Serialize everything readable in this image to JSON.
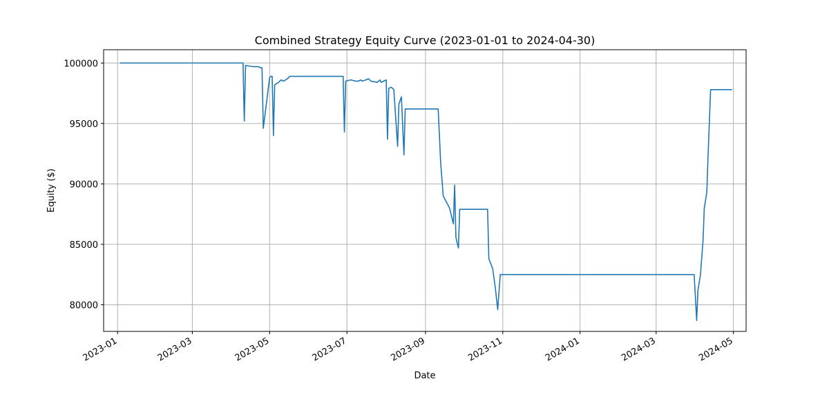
{
  "chart_data": {
    "type": "line",
    "title": "Combined Strategy Equity Curve (2023-01-01 to 2024-04-30)",
    "xlabel": "Date",
    "ylabel": "Equity ($)",
    "grid": true,
    "x_axis": {
      "type": "date",
      "range": [
        "2022-12-21",
        "2024-05-11"
      ],
      "tick_labels": [
        "2023-01",
        "2023-03",
        "2023-05",
        "2023-07",
        "2023-09",
        "2023-11",
        "2024-01",
        "2024-03",
        "2024-05"
      ]
    },
    "y_axis": {
      "range": [
        77800,
        101100
      ],
      "tick_labels": [
        "80000",
        "85000",
        "90000",
        "95000",
        "100000"
      ]
    },
    "colors": {
      "line": "#1f77b4"
    },
    "series": [
      {
        "x": [
          "2023-01-03",
          "2023-04-10",
          "2023-04-11",
          "2023-04-12",
          "2023-04-18",
          "2023-04-22",
          "2023-04-24",
          "2023-04-25",
          "2023-04-26",
          "2023-05-01",
          "2023-05-02",
          "2023-05-03",
          "2023-05-04",
          "2023-05-05",
          "2023-05-08",
          "2023-05-10",
          "2023-05-12",
          "2023-05-15",
          "2023-05-17",
          "2023-06-28",
          "2023-06-29",
          "2023-06-30",
          "2023-07-04",
          "2023-07-08",
          "2023-07-10",
          "2023-07-12",
          "2023-07-13",
          "2023-07-16",
          "2023-07-18",
          "2023-07-20",
          "2023-07-25",
          "2023-07-27",
          "2023-07-28",
          "2023-07-30",
          "2023-08-01",
          "2023-08-02",
          "2023-08-03",
          "2023-08-05",
          "2023-08-07",
          "2023-08-10",
          "2023-08-11",
          "2023-08-13",
          "2023-08-15",
          "2023-08-16",
          "2023-08-17",
          "2023-08-18",
          "2023-08-19",
          "2023-08-20",
          "2023-09-11",
          "2023-09-13",
          "2023-09-15",
          "2023-09-20",
          "2023-09-23",
          "2023-09-24",
          "2023-09-25",
          "2023-09-26",
          "2023-09-27",
          "2023-09-28",
          "2023-10-20",
          "2023-10-21",
          "2023-10-24",
          "2023-10-26",
          "2023-10-28",
          "2023-10-30",
          "2023-11-01",
          "2024-03-31",
          "2024-04-02",
          "2024-04-03",
          "2024-04-05",
          "2024-04-07",
          "2024-04-08",
          "2024-04-10",
          "2024-04-11",
          "2024-04-13",
          "2024-04-17",
          "2024-04-18",
          "2024-04-20",
          "2024-04-30"
        ],
        "y": [
          100000,
          100000,
          95200,
          99800,
          99700,
          99700,
          99600,
          99600,
          94600,
          98800,
          98900,
          98900,
          94000,
          98200,
          98400,
          98600,
          98500,
          98700,
          98900,
          98900,
          94300,
          98500,
          98600,
          98500,
          98500,
          98600,
          98500,
          98600,
          98700,
          98500,
          98400,
          98600,
          98400,
          98500,
          98600,
          93700,
          97900,
          98000,
          97800,
          93100,
          96600,
          97200,
          92400,
          96200,
          96200,
          96200,
          96200,
          96200,
          96200,
          91700,
          89000,
          88000,
          86700,
          89900,
          85600,
          85100,
          84700,
          87900,
          87900,
          83800,
          83000,
          81500,
          79600,
          82500,
          82500,
          82500,
          78700,
          81200,
          82500,
          85300,
          88000,
          89300,
          92400,
          97800,
          97800,
          97800,
          97800,
          97800
        ]
      }
    ]
  }
}
